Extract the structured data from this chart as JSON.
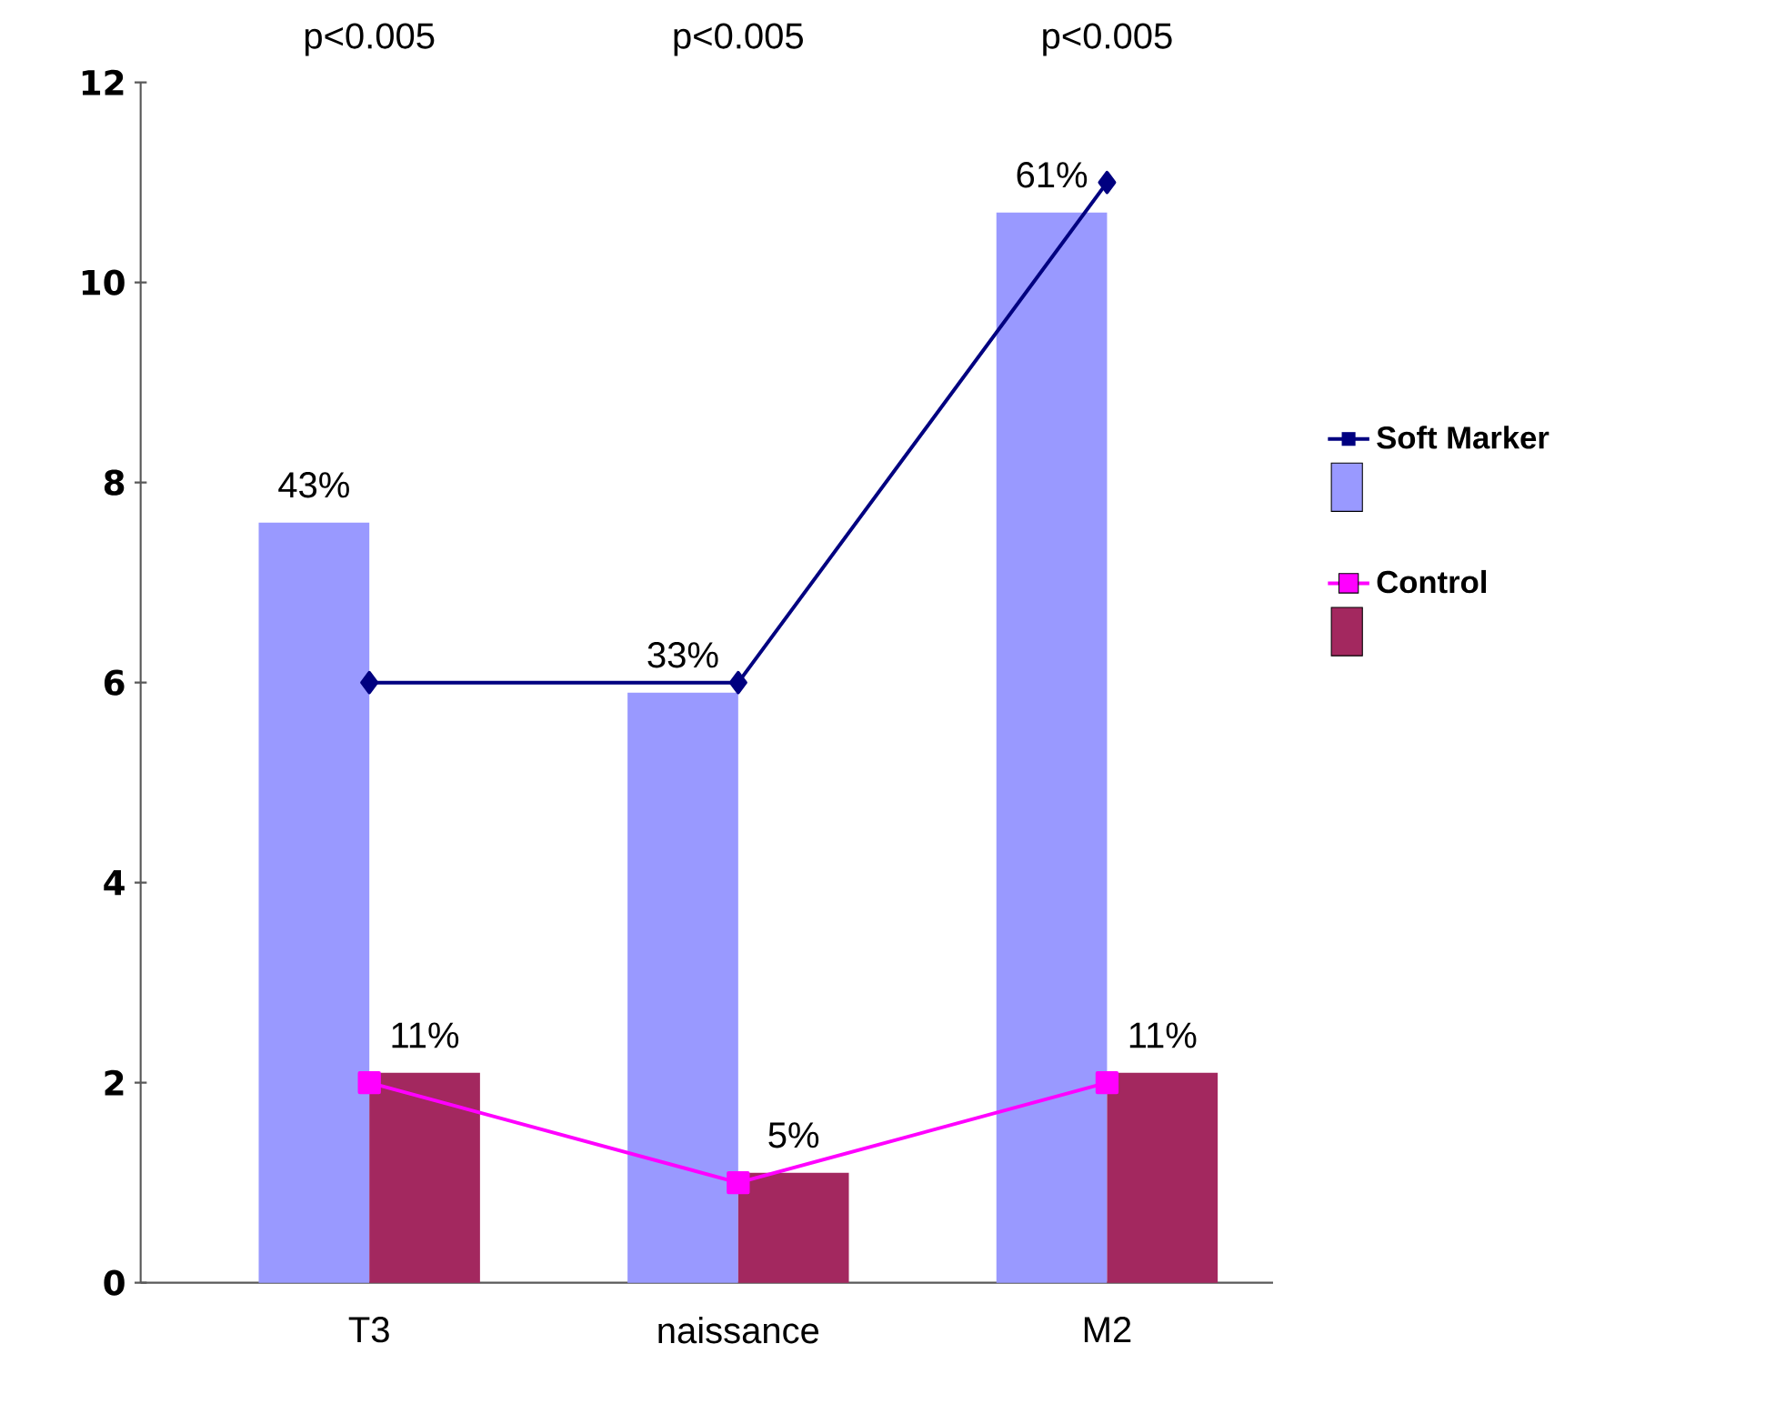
{
  "chart_data": {
    "type": "bar",
    "categories": [
      "T3",
      "naissance",
      "M2"
    ],
    "series": [
      {
        "color": "#9999ff",
        "values": [
          7.6,
          5.9,
          10.7
        ]
      },
      {
        "color": "#a3285f",
        "values": [
          2.1,
          1.1,
          2.1
        ]
      },
      {
        "type": "line",
        "name": "Soft Marker",
        "color": "#000080",
        "values": [
          6,
          6,
          11
        ],
        "marker": "diamond"
      },
      {
        "type": "line",
        "name": "Control",
        "color": "#ff00ff",
        "values": [
          2,
          1,
          2
        ],
        "marker": "square"
      }
    ],
    "ylim": [
      0,
      12
    ],
    "yticks": [
      0,
      2,
      4,
      6,
      8,
      10,
      12
    ],
    "legend": "right",
    "annotations": [
      "p<0.005",
      "p<0.005",
      "p<0.005",
      {
        "text": "43%",
        "x": "T3",
        "y": 7.6
      },
      {
        "text": "33%",
        "x": "naissance",
        "y": 5.9
      },
      {
        "text": "61%",
        "x": "M2",
        "y": 10.7
      },
      {
        "text": "11%",
        "x": "T3",
        "y": 2.1
      },
      {
        "text": "5%",
        "x": "naissance",
        "y": 1.1
      },
      {
        "text": "11%",
        "x": "M2",
        "y": 2.1
      }
    ]
  }
}
